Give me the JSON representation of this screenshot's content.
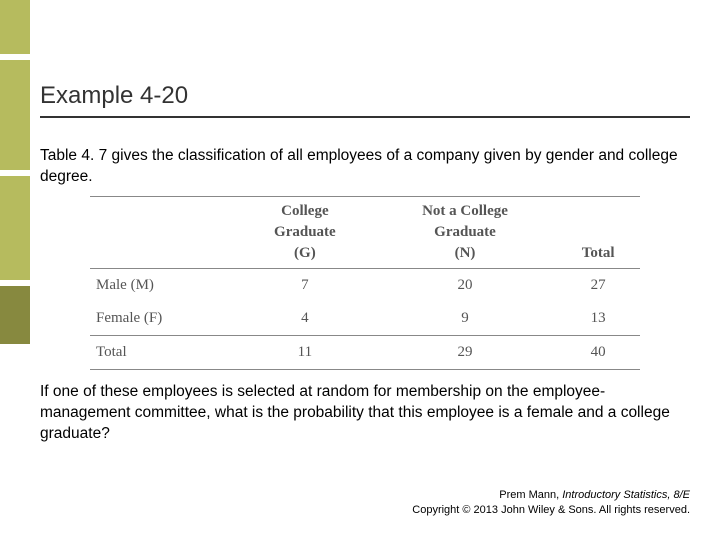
{
  "title": "Example 4-20",
  "intro": "Table 4. 7 gives the classification of all employees of a company given by gender and college degree.",
  "table": {
    "header": {
      "col1_line1": "College",
      "col1_line2": "Graduate",
      "col1_line3": "(G)",
      "col2_line1": "Not a College",
      "col2_line2": "Graduate",
      "col2_line3": "(N)",
      "total": "Total"
    },
    "rows": [
      {
        "label": "Male (M)",
        "g": "7",
        "n": "20",
        "total": "27"
      },
      {
        "label": "Female (F)",
        "g": "4",
        "n": "9",
        "total": "13"
      }
    ],
    "totals": {
      "label": "Total",
      "g": "11",
      "n": "29",
      "total": "40"
    }
  },
  "question": "If one of these employees is selected at random for membership on the employee-management committee, what is the probability that this employee is a female and a college graduate?",
  "footer": {
    "line1_author": "Prem Mann, ",
    "line1_book": "Introductory Statistics, 8/E",
    "line2": "Copyright © 2013 John Wiley & Sons. All rights reserved."
  },
  "colors": {
    "olive": "#b6bb5e",
    "dark_olive": "#87893f",
    "text": "#000000",
    "table_text": "#555555",
    "rule": "#888888",
    "title_rule": "#333333"
  }
}
